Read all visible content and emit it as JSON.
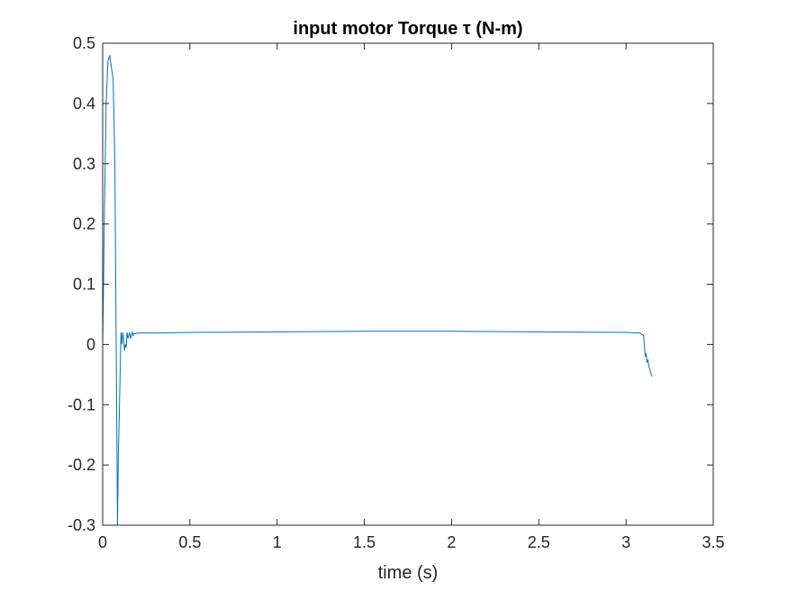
{
  "chart_data": {
    "type": "line",
    "title": "input motor Torque τ (N-m)",
    "xlabel": "time (s)",
    "ylabel": "",
    "xlim": [
      0,
      3.5
    ],
    "ylim": [
      -0.3,
      0.5
    ],
    "xticks": [
      0,
      0.5,
      1,
      1.5,
      2,
      2.5,
      3,
      3.5
    ],
    "xtick_labels": [
      "0",
      "0.5",
      "1",
      "1.5",
      "2",
      "2.5",
      "3",
      "3.5"
    ],
    "yticks": [
      -0.3,
      -0.2,
      -0.1,
      0,
      0.1,
      0.2,
      0.3,
      0.4,
      0.5
    ],
    "ytick_labels": [
      "-0.3",
      "-0.2",
      "-0.1",
      "0",
      "0.1",
      "0.2",
      "0.3",
      "0.4",
      "0.5"
    ],
    "grid": false,
    "box": true,
    "line_color": "#0072BD",
    "series": [
      {
        "x": [
          0,
          0.005,
          0.01,
          0.02,
          0.03,
          0.04,
          0.05,
          0.06,
          0.07,
          0.075,
          0.08,
          0.085,
          0.09,
          0.095,
          0.1,
          0.105,
          0.11,
          0.115,
          0.12,
          0.125,
          0.13,
          0.135,
          0.14,
          0.145,
          0.15,
          0.155,
          0.16,
          0.165,
          0.17,
          0.175,
          0.18,
          0.19,
          0.2,
          0.22,
          0.25,
          0.3,
          0.5,
          1.0,
          1.5,
          2.0,
          2.5,
          3.0,
          3.08,
          3.1,
          3.105,
          3.11,
          3.115,
          3.12,
          3.125,
          3.13,
          3.135,
          3.14,
          3.145,
          3.15
        ],
        "y": [
          0,
          0.1,
          0.22,
          0.4,
          0.47,
          0.48,
          0.46,
          0.44,
          0.3,
          0.1,
          -0.1,
          -0.3,
          -0.18,
          -0.12,
          -0.05,
          0.02,
          0.0,
          0.02,
          0.01,
          -0.01,
          0.0,
          -0.005,
          0.02,
          0.01,
          0.015,
          0.02,
          0.01,
          0.015,
          0.02,
          0.015,
          0.018,
          0.018,
          0.019,
          0.019,
          0.019,
          0.019,
          0.02,
          0.021,
          0.022,
          0.022,
          0.021,
          0.02,
          0.019,
          0.015,
          0.0,
          -0.02,
          -0.015,
          -0.03,
          -0.025,
          -0.035,
          -0.04,
          -0.045,
          -0.05,
          -0.053
        ]
      }
    ]
  }
}
